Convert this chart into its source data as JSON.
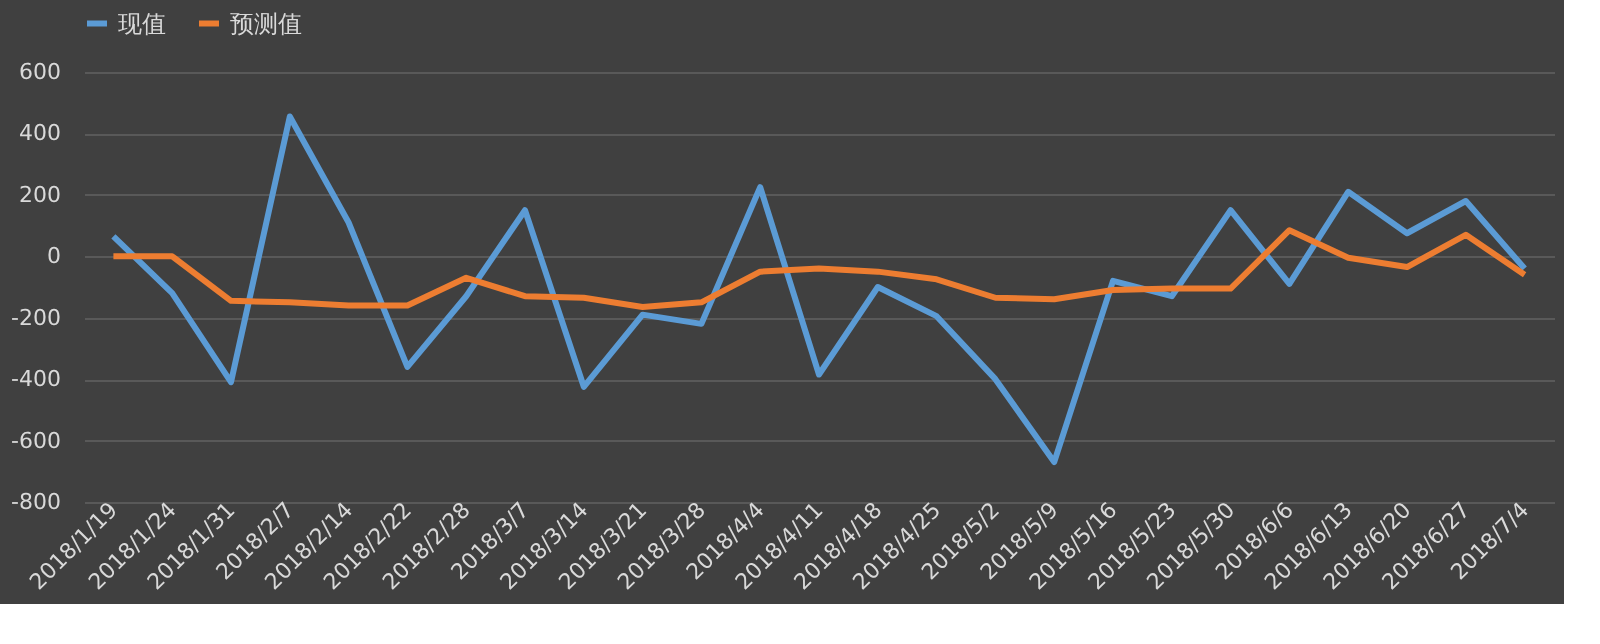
{
  "chart_data": {
    "type": "line",
    "categories": [
      "2018/1/19",
      "2018/1/24",
      "2018/1/31",
      "2018/2/7",
      "2018/2/14",
      "2018/2/22",
      "2018/2/28",
      "2018/3/7",
      "2018/3/14",
      "2018/3/21",
      "2018/3/28",
      "2018/4/4",
      "2018/4/11",
      "2018/4/18",
      "2018/4/25",
      "2018/5/2",
      "2018/5/9",
      "2018/5/16",
      "2018/5/23",
      "2018/5/30",
      "2018/6/6",
      "2018/6/13",
      "2018/6/20",
      "2018/6/27",
      "2018/7/4"
    ],
    "series": [
      {
        "name": "现值",
        "color": "#5b9bd5",
        "values": [
          65,
          -120,
          -410,
          455,
          110,
          -360,
          -130,
          150,
          -425,
          -190,
          -220,
          225,
          -385,
          -100,
          -195,
          -400,
          -670,
          -80,
          -130,
          150,
          -90,
          210,
          75,
          180,
          -40
        ]
      },
      {
        "name": "预测值",
        "color": "#ed7d31",
        "values": [
          0,
          0,
          -145,
          -150,
          -160,
          -160,
          -70,
          -130,
          -135,
          -165,
          -150,
          -50,
          -40,
          -50,
          -75,
          -135,
          -140,
          -110,
          -105,
          -105,
          85,
          -5,
          -35,
          70,
          -60
        ]
      }
    ],
    "ylim": [
      -800,
      600
    ],
    "yticks": [
      -800,
      -600,
      -400,
      -200,
      0,
      200,
      400,
      600
    ],
    "grid": "y",
    "legend": "top",
    "marker": "none",
    "line_style": "solid"
  }
}
